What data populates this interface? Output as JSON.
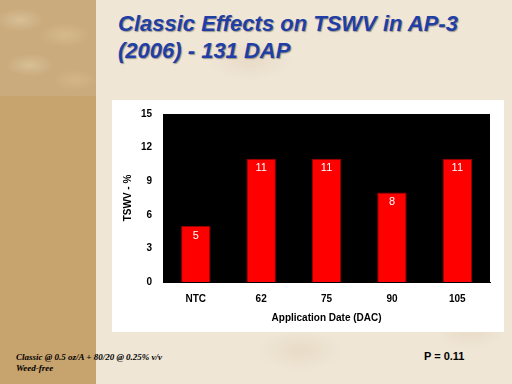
{
  "chart_data": {
    "type": "bar",
    "title": "Classic Effects on TSWV in AP-3 (2006) - 131 DAP",
    "x_label": "Application Date (DAC)",
    "y_label": "TSWV - %",
    "categories": [
      "NTC",
      "62",
      "75",
      "90",
      "105"
    ],
    "values": [
      5,
      11,
      11,
      8,
      11
    ],
    "color": "#ff0000",
    "ylim": [
      0,
      15
    ],
    "yticks": [
      0,
      3,
      6,
      9,
      12,
      15
    ],
    "grid": false,
    "data_labels": true,
    "annotations": [
      "Classic @ 0.5 oz/A + 80/20 @ 0.25% v/v",
      "Weed-free",
      "P = 0.11"
    ]
  }
}
